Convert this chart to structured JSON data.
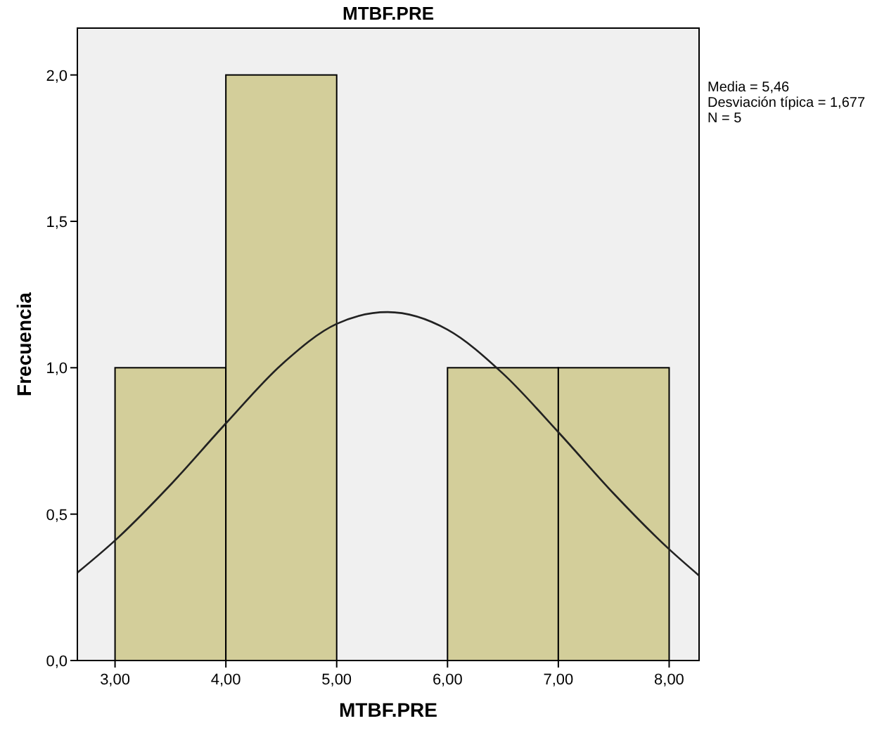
{
  "chart_data": {
    "type": "histogram",
    "title": "MTBF.PRE",
    "xlabel": "MTBF.PRE",
    "ylabel": "Frecuencia",
    "series": [
      {
        "bins": [
          3,
          4,
          5,
          6,
          7,
          8
        ],
        "values": [
          1,
          2,
          0,
          1,
          1
        ],
        "color": "#d3ce9a"
      },
      {
        "type": "line",
        "x": [
          2.66,
          3,
          3.5,
          4,
          4.5,
          5,
          5.46,
          6,
          6.5,
          7,
          7.5,
          8,
          8.27
        ],
        "values": [
          0.3,
          0.41,
          0.6,
          0.81,
          1.01,
          1.15,
          1.19,
          1.13,
          0.98,
          0.78,
          0.57,
          0.38,
          0.29
        ],
        "color": "#222222"
      }
    ],
    "xlim": [
      2.66,
      8.27
    ],
    "ylim": [
      0,
      2.16
    ],
    "xticks": [
      {
        "value": 3,
        "label": "3,00"
      },
      {
        "value": 4,
        "label": "4,00"
      },
      {
        "value": 5,
        "label": "5,00"
      },
      {
        "value": 6,
        "label": "6,00"
      },
      {
        "value": 7,
        "label": "7,00"
      },
      {
        "value": 8,
        "label": "8,00"
      }
    ],
    "yticks": [
      {
        "value": 0,
        "label": "0,0"
      },
      {
        "value": 0.5,
        "label": "0,5"
      },
      {
        "value": 1,
        "label": "1,0"
      },
      {
        "value": 1.5,
        "label": "1,5"
      },
      {
        "value": 2,
        "label": "2,0"
      }
    ],
    "annotations": [
      "Media = 5,46",
      "Desviación típica = 1,677",
      "N = 5"
    ],
    "grid": false
  }
}
